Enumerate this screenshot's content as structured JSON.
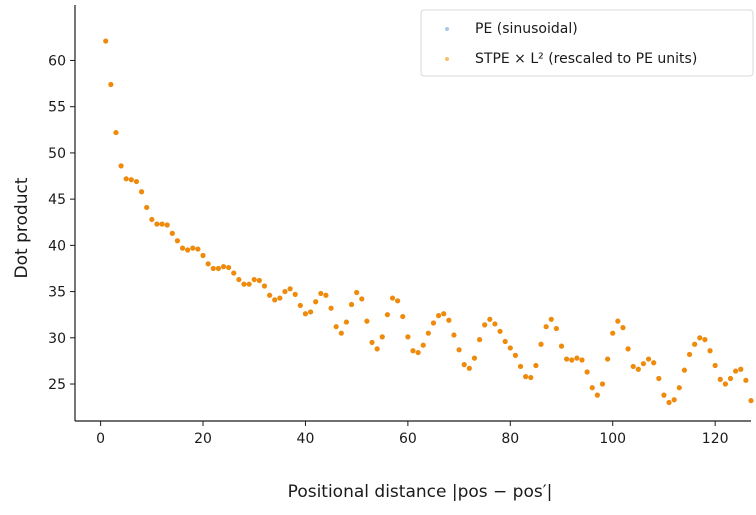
{
  "chart_data": {
    "type": "scatter",
    "title": "",
    "xlabel": "Positional distance  |pos − pos′|",
    "ylabel": "Dot product",
    "xlim": [
      -5,
      127
    ],
    "ylim": [
      21,
      66
    ],
    "xticks": [
      0,
      20,
      40,
      60,
      80,
      100,
      120
    ],
    "yticks": [
      25,
      30,
      35,
      40,
      45,
      50,
      55,
      60
    ],
    "grid": false,
    "legend_position": "top-right",
    "x": [
      1,
      2,
      3,
      4,
      5,
      6,
      7,
      8,
      9,
      10,
      11,
      12,
      13,
      14,
      15,
      16,
      17,
      18,
      19,
      20,
      21,
      22,
      23,
      24,
      25,
      26,
      27,
      28,
      29,
      30,
      31,
      32,
      33,
      34,
      35,
      36,
      37,
      38,
      39,
      40,
      41,
      42,
      43,
      44,
      45,
      46,
      47,
      48,
      49,
      50,
      51,
      52,
      53,
      54,
      55,
      56,
      57,
      58,
      59,
      60,
      61,
      62,
      63,
      64,
      65,
      66,
      67,
      68,
      69,
      70,
      71,
      72,
      73,
      74,
      75,
      76,
      77,
      78,
      79,
      80,
      81,
      82,
      83,
      84,
      85,
      86,
      87,
      88,
      89,
      90,
      91,
      92,
      93,
      94,
      95,
      96,
      97,
      98,
      99,
      100,
      101,
      102,
      103,
      104,
      105,
      106,
      107,
      108,
      109,
      110,
      111,
      112,
      113,
      114,
      115,
      116,
      117,
      118,
      119,
      120,
      121,
      122,
      123,
      124,
      125,
      126,
      127
    ],
    "series": [
      {
        "name": "PE  (sinusoidal)",
        "color": "#a9c8e8",
        "values": [
          62.1,
          57.4,
          52.2,
          48.6,
          47.2,
          47.1,
          46.9,
          45.8,
          44.1,
          42.8,
          42.3,
          42.3,
          42.2,
          41.3,
          40.5,
          39.7,
          39.5,
          39.7,
          39.6,
          38.9,
          38.0,
          37.5,
          37.5,
          37.7,
          37.6,
          37.0,
          36.3,
          35.8,
          35.8,
          36.3,
          36.2,
          35.6,
          34.6,
          34.1,
          34.3,
          35.0,
          35.3,
          34.7,
          33.5,
          32.6,
          32.8,
          33.9,
          34.8,
          34.6,
          33.2,
          31.2,
          30.5,
          31.7,
          33.6,
          34.9,
          34.2,
          31.8,
          29.5,
          28.8,
          30.1,
          32.5,
          34.3,
          34.0,
          32.3,
          30.1,
          28.6,
          28.4,
          29.2,
          30.5,
          31.6,
          32.4,
          32.6,
          31.9,
          30.3,
          28.7,
          27.1,
          26.7,
          27.8,
          29.8,
          31.4,
          32.0,
          31.5,
          30.7,
          29.6,
          28.9,
          28.1,
          26.9,
          25.8,
          25.7,
          27.0,
          29.3,
          31.2,
          32.0,
          31.0,
          29.1,
          27.7,
          27.6,
          27.8,
          27.6,
          26.3,
          24.6,
          23.8,
          25.0,
          27.7,
          30.5,
          31.8,
          31.1,
          28.8,
          26.9,
          26.6,
          27.2,
          27.7,
          27.3,
          25.6,
          23.8,
          23.0,
          23.3,
          24.6,
          26.5,
          28.2,
          29.3,
          30.0,
          29.8,
          28.6,
          27.0,
          25.5,
          25.0,
          25.6,
          26.4,
          26.6,
          25.4,
          23.2
        ]
      },
      {
        "name": "STPE × L²  (rescaled to PE units)",
        "color": "#f5c06a",
        "values": [
          62.1,
          57.4,
          52.2,
          48.6,
          47.2,
          47.1,
          46.9,
          45.8,
          44.1,
          42.8,
          42.3,
          42.3,
          42.2,
          41.3,
          40.5,
          39.7,
          39.5,
          39.7,
          39.6,
          38.9,
          38.0,
          37.5,
          37.5,
          37.7,
          37.6,
          37.0,
          36.3,
          35.8,
          35.8,
          36.3,
          36.2,
          35.6,
          34.6,
          34.1,
          34.3,
          35.0,
          35.3,
          34.7,
          33.5,
          32.6,
          32.8,
          33.9,
          34.8,
          34.6,
          33.2,
          31.2,
          30.5,
          31.7,
          33.6,
          34.9,
          34.2,
          31.8,
          29.5,
          28.8,
          30.1,
          32.5,
          34.3,
          34.0,
          32.3,
          30.1,
          28.6,
          28.4,
          29.2,
          30.5,
          31.6,
          32.4,
          32.6,
          31.9,
          30.3,
          28.7,
          27.1,
          26.7,
          27.8,
          29.8,
          31.4,
          32.0,
          31.5,
          30.7,
          29.6,
          28.9,
          28.1,
          26.9,
          25.8,
          25.7,
          27.0,
          29.3,
          31.2,
          32.0,
          31.0,
          29.1,
          27.7,
          27.6,
          27.8,
          27.6,
          26.3,
          24.6,
          23.8,
          25.0,
          27.7,
          30.5,
          31.8,
          31.1,
          28.8,
          26.9,
          26.6,
          27.2,
          27.7,
          27.3,
          25.6,
          23.8,
          23.0,
          23.3,
          24.6,
          26.5,
          28.2,
          29.3,
          30.0,
          29.8,
          28.6,
          27.0,
          25.5,
          25.0,
          25.6,
          26.4,
          26.6,
          25.4,
          23.2
        ]
      }
    ],
    "overlap_marker_color": "#f08a0a",
    "axis_color": "#1a1a1a",
    "legend_border_color": "#d9d9d9"
  }
}
